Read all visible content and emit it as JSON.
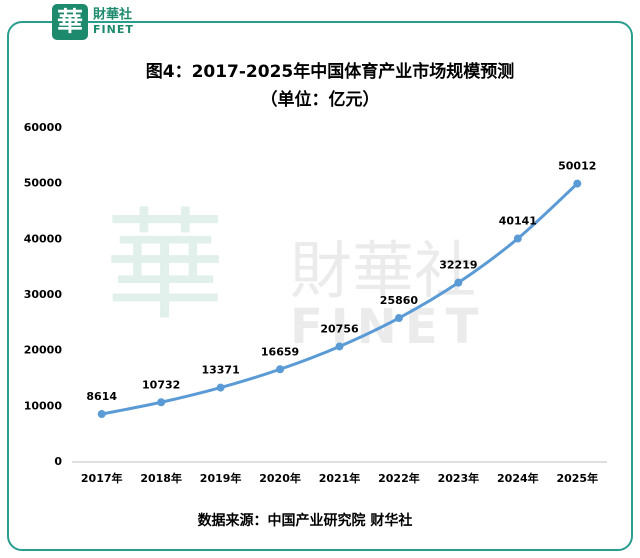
{
  "branding": {
    "logo_char": "華",
    "name": "財華社",
    "latin": "FINET"
  },
  "chart_data": {
    "type": "line",
    "title": "图4：2017-2025年中国体育产业市场规模预测",
    "subtitle": "（单位：亿元）",
    "categories": [
      "2017年",
      "2018年",
      "2019年",
      "2020年",
      "2021年",
      "2022年",
      "2023年",
      "2024年",
      "2025年"
    ],
    "series": [
      {
        "name": "中国体育产业市场规模",
        "color": "#5b9bd5",
        "values": [
          8614,
          10732,
          13371,
          16659,
          20756,
          25860,
          32219,
          40141,
          50012
        ]
      }
    ],
    "ylim": [
      0,
      60000
    ],
    "yticks": [
      0,
      10000,
      20000,
      30000,
      40000,
      50000,
      60000
    ],
    "grid": false,
    "smooth": true,
    "markers": true,
    "data_labels": true,
    "source": "数据来源：中国产业研究院    财华社"
  }
}
